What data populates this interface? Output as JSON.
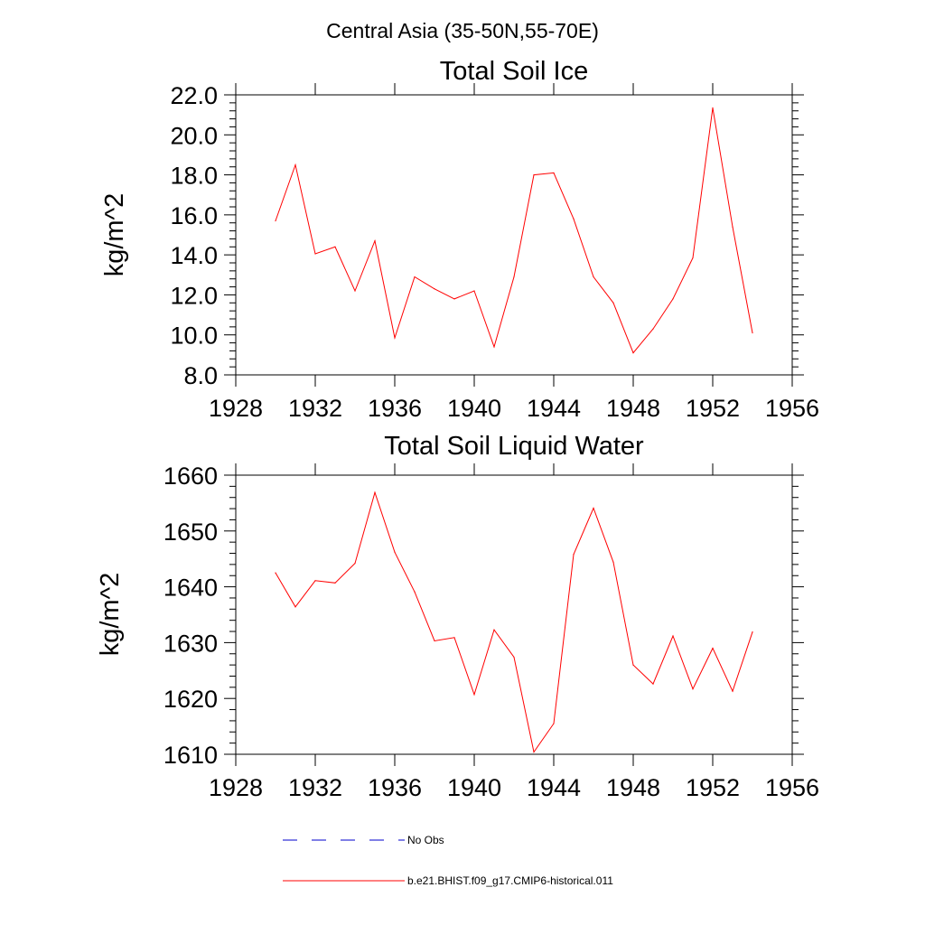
{
  "page_title": "Central Asia (35-50N,55-70E)",
  "colors": {
    "series": "#ff0000",
    "obs": "#0000cd",
    "axis": "#000000"
  },
  "legend": {
    "obs_label": "No Obs",
    "model_label": "b.e21.BHIST.f09_g17.CMIP6-historical.011"
  },
  "chart_data": [
    {
      "type": "line",
      "title": "Total Soil Ice",
      "xlabel": "",
      "ylabel": "kg/m^2",
      "xlim": [
        1928,
        1956
      ],
      "ylim": [
        8.0,
        22.0
      ],
      "x_ticks": [
        "1928",
        "1932",
        "1936",
        "1940",
        "1944",
        "1948",
        "1952",
        "1956"
      ],
      "y_ticks": [
        "8.0",
        "10.0",
        "12.0",
        "14.0",
        "16.0",
        "18.0",
        "20.0",
        "22.0"
      ],
      "series": [
        {
          "name": "b.e21.BHIST.f09_g17.CMIP6-historical.011",
          "x": [
            1930,
            1931,
            1932,
            1933,
            1934,
            1935,
            1936,
            1937,
            1938,
            1939,
            1940,
            1941,
            1942,
            1943,
            1944,
            1945,
            1946,
            1947,
            1948,
            1949,
            1950,
            1951,
            1952,
            1953,
            1954
          ],
          "values": [
            15.7,
            18.5,
            14.05,
            14.4,
            12.2,
            14.7,
            9.85,
            12.9,
            12.3,
            11.8,
            12.2,
            9.4,
            12.9,
            18.0,
            18.1,
            15.8,
            12.9,
            11.6,
            9.1,
            10.3,
            11.8,
            13.85,
            21.35,
            15.4,
            10.1
          ]
        }
      ]
    },
    {
      "type": "line",
      "title": "Total Soil Liquid Water",
      "xlabel": "",
      "ylabel": "kg/m^2",
      "xlim": [
        1928,
        1956
      ],
      "ylim": [
        1610,
        1660
      ],
      "x_ticks": [
        "1928",
        "1932",
        "1936",
        "1940",
        "1944",
        "1948",
        "1952",
        "1956"
      ],
      "y_ticks": [
        "1610",
        "1620",
        "1630",
        "1640",
        "1650",
        "1660"
      ],
      "series": [
        {
          "name": "b.e21.BHIST.f09_g17.CMIP6-historical.011",
          "x": [
            1930,
            1931,
            1932,
            1933,
            1934,
            1935,
            1936,
            1937,
            1938,
            1939,
            1940,
            1941,
            1942,
            1943,
            1944,
            1945,
            1946,
            1947,
            1948,
            1949,
            1950,
            1951,
            1952,
            1953,
            1954
          ],
          "values": [
            1642.5,
            1636.4,
            1641.1,
            1640.7,
            1644.2,
            1656.9,
            1646.2,
            1639.1,
            1630.3,
            1630.9,
            1620.7,
            1632.3,
            1627.4,
            1610.4,
            1615.5,
            1645.8,
            1654.1,
            1644.4,
            1626.0,
            1622.6,
            1631.2,
            1621.7,
            1629.0,
            1621.3,
            1631.9
          ]
        }
      ]
    }
  ]
}
